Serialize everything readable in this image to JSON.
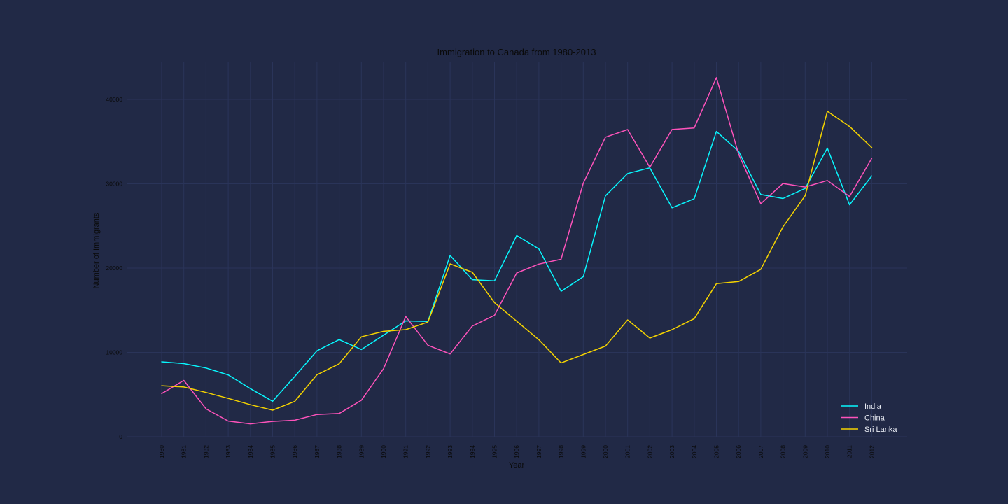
{
  "chart_data": {
    "type": "line",
    "title": "Immigration to Canada from 1980-2013",
    "xlabel": "Year",
    "ylabel": "Number of Immigrants",
    "x": [
      "1980",
      "1981",
      "1982",
      "1983",
      "1984",
      "1985",
      "1986",
      "1987",
      "1988",
      "1989",
      "1990",
      "1991",
      "1992",
      "1993",
      "1994",
      "1995",
      "1996",
      "1997",
      "1998",
      "1999",
      "2000",
      "2001",
      "2002",
      "2003",
      "2004",
      "2005",
      "2006",
      "2007",
      "2008",
      "2009",
      "2010",
      "2011",
      "2012"
    ],
    "ylim": [
      0,
      45000
    ],
    "yticks": [
      0,
      10000,
      20000,
      30000,
      40000
    ],
    "ytick_labels": [
      "0",
      "10000",
      "20000",
      "30000",
      "40000"
    ],
    "grid": true,
    "legend_position": "bottom-right",
    "series": [
      {
        "name": "India",
        "color": "#08F7FE",
        "values": [
          8880,
          8670,
          8147,
          7338,
          5704,
          4211,
          7150,
          10189,
          11522,
          10343,
          12041,
          13734,
          13673,
          21496,
          18620,
          18489,
          23859,
          22268,
          17241,
          18974,
          28572,
          31223,
          31889,
          27155,
          28235,
          36210,
          33848,
          28742,
          28261,
          29456,
          34235,
          27509,
          30933
        ]
      },
      {
        "name": "China",
        "color": "#FE53BB",
        "values": [
          5123,
          6682,
          3308,
          1863,
          1527,
          1816,
          1960,
          2643,
          2758,
          4323,
          8076,
          14255,
          10846,
          9817,
          13128,
          14398,
          19415,
          20475,
          21049,
          30069,
          35529,
          36434,
          31961,
          36439,
          36619,
          42584,
          33518,
          27642,
          30037,
          29622,
          30391,
          28502,
          33024
        ]
      },
      {
        "name": "Sri Lanka",
        "color": "#F5D300",
        "values": [
          6050,
          5900,
          5250,
          4550,
          3800,
          3150,
          4200,
          7350,
          8650,
          11850,
          12500,
          12700,
          13600,
          20500,
          19500,
          15900,
          13700,
          11500,
          8750,
          9750,
          10750,
          13850,
          11700,
          12700,
          14000,
          18150,
          18400,
          19850,
          24900,
          28600,
          38600,
          36800,
          34300
        ]
      }
    ]
  }
}
